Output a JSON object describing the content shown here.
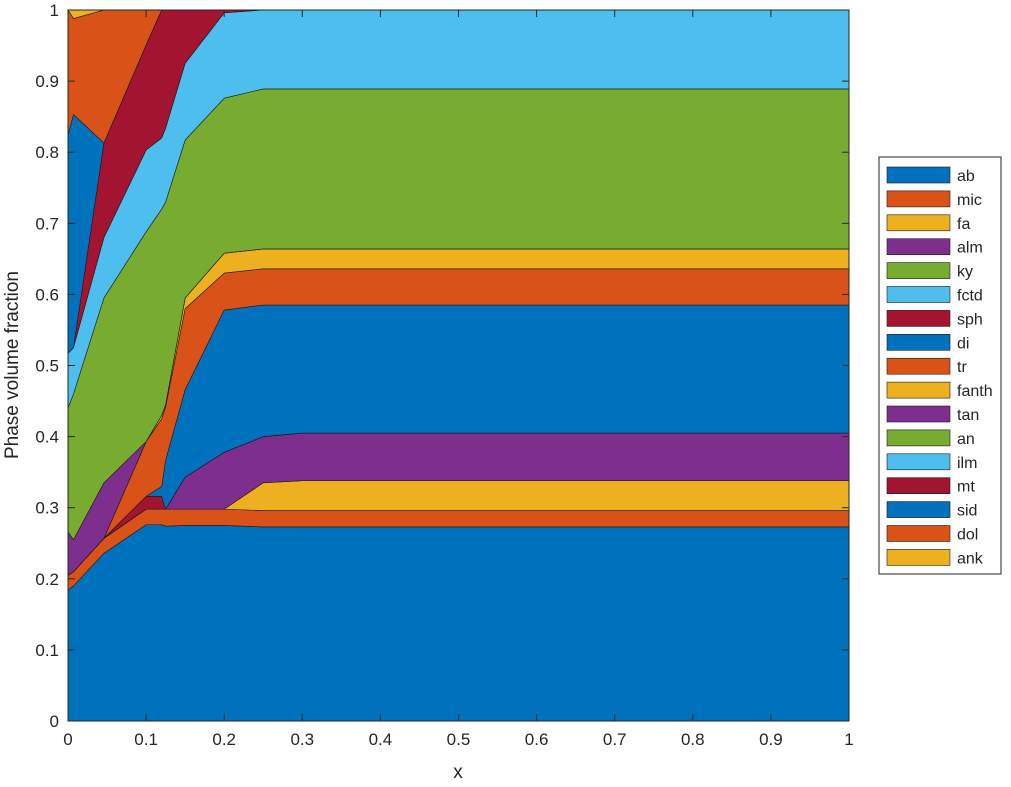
{
  "chart_data": {
    "type": "area",
    "stacked": true,
    "title": "",
    "xlabel": "x",
    "ylabel": "Phase volume fraction",
    "xlim": [
      0,
      1
    ],
    "ylim": [
      0,
      1
    ],
    "xticks": [
      "0",
      "0.1",
      "0.2",
      "0.3",
      "0.4",
      "0.5",
      "0.6",
      "0.7",
      "0.8",
      "0.9",
      "1"
    ],
    "yticks": [
      "0",
      "0.1",
      "0.2",
      "0.3",
      "0.4",
      "0.5",
      "0.6",
      "0.7",
      "0.8",
      "0.9",
      "1"
    ],
    "grid": false,
    "legend_position": "right",
    "x": [
      0,
      0.007,
      0.046,
      0.1,
      0.12,
      0.125,
      0.15,
      0.2,
      0.25,
      0.3,
      1
    ],
    "series": [
      {
        "name": "ab",
        "color": "#0072BD",
        "values": [
          0.184,
          0.19,
          0.236,
          0.276,
          0.276,
          0.274,
          0.275,
          0.275,
          0.273,
          0.273,
          0.273
        ]
      },
      {
        "name": "mic",
        "color": "#D95319",
        "values": [
          0.021,
          0.02,
          0.021,
          0.022,
          0.022,
          0.024,
          0.023,
          0.023,
          0.023,
          0.023,
          0.023
        ]
      },
      {
        "name": "fa",
        "color": "#EDB120",
        "values": [
          0,
          0,
          0,
          0,
          0,
          0,
          0,
          0,
          0.039,
          0.042,
          0.042
        ]
      },
      {
        "name": "alm",
        "color": "#7E2F8E",
        "values": [
          0,
          0,
          0,
          0,
          0,
          0,
          0.045,
          0.08,
          0.065,
          0.067,
          0.067
        ]
      },
      {
        "name": "ky",
        "color": "#77AC30",
        "values": [
          0,
          0,
          0,
          0,
          0,
          0,
          0,
          0,
          0,
          0,
          0
        ]
      },
      {
        "name": "fctd",
        "color": "#4DBEEE",
        "values": [
          0,
          0,
          0,
          0,
          0,
          0,
          0,
          0,
          0,
          0,
          0
        ]
      },
      {
        "name": "sph",
        "color": "#A2142F",
        "values": [
          0,
          0,
          0,
          0.018,
          0.018,
          0,
          0,
          0,
          0,
          0,
          0
        ]
      },
      {
        "name": "di",
        "color": "#0072BD",
        "values": [
          0,
          0,
          0,
          0,
          0.014,
          0.069,
          0.123,
          0.2,
          0.185,
          0.18,
          0.18
        ]
      },
      {
        "name": "tr",
        "color": "#D95319",
        "values": [
          0,
          0,
          0,
          0.077,
          0.095,
          0.075,
          0.114,
          0.052,
          0.051,
          0.051,
          0.051
        ]
      },
      {
        "name": "fanth",
        "color": "#EDB120",
        "values": [
          0,
          0,
          0,
          0,
          0.005,
          0.003,
          0.015,
          0.028,
          0.028,
          0.028,
          0.028
        ]
      },
      {
        "name": "tan",
        "color": "#7E2F8E",
        "values": [
          0.061,
          0.045,
          0.078,
          0,
          0,
          0,
          0,
          0,
          0,
          0,
          0
        ]
      },
      {
        "name": "an",
        "color": "#77AC30",
        "values": [
          0.174,
          0.205,
          0.26,
          0.295,
          0.29,
          0.285,
          0.222,
          0.218,
          0.225,
          0.225,
          0.225
        ]
      },
      {
        "name": "ilm",
        "color": "#4DBEEE",
        "values": [
          0.077,
          0.065,
          0.085,
          0.115,
          0.1,
          0.104,
          0.108,
          0.12,
          0.111,
          0.111,
          0.111
        ]
      },
      {
        "name": "mt",
        "color": "#A2142F",
        "values": [
          0,
          0,
          0.133,
          0.148,
          0.18,
          0.166,
          0.075,
          0.004,
          0,
          0,
          0
        ]
      },
      {
        "name": "sid",
        "color": "#0072BD",
        "values": [
          0.307,
          0.328,
          0,
          0,
          0,
          0,
          0,
          0,
          0,
          0,
          0
        ]
      },
      {
        "name": "dol",
        "color": "#D95319",
        "values": [
          0.176,
          0.135,
          0.187,
          0.049,
          0,
          0,
          0,
          0,
          0,
          0,
          0
        ]
      },
      {
        "name": "ank",
        "color": "#EDB120",
        "values": [
          0,
          0.012,
          0,
          0,
          0,
          0,
          0,
          0,
          0,
          0,
          0
        ]
      }
    ]
  }
}
